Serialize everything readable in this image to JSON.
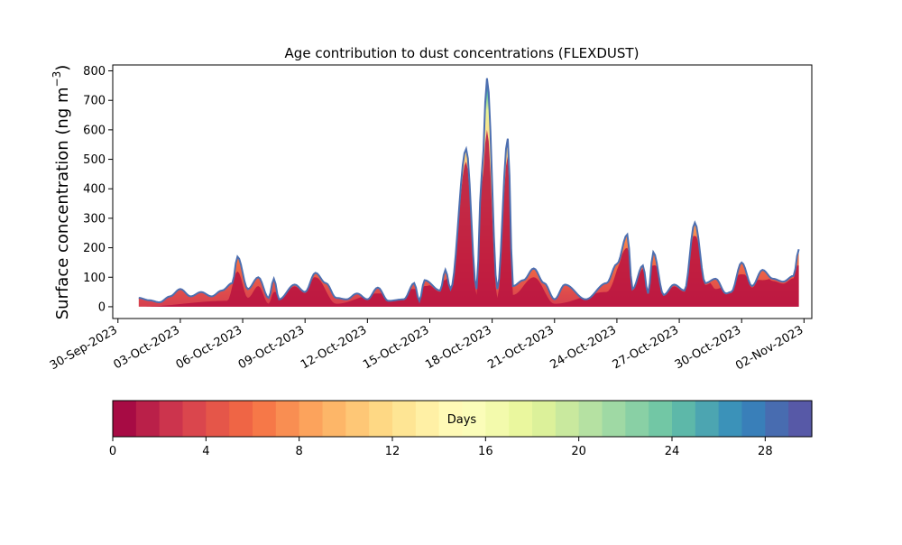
{
  "chart_data": [
    {
      "type": "area",
      "stacked": true,
      "title": "Age contribution to dust concentrations (FLEXDUST)",
      "ylabel_main": "Surface concentration (ng m",
      "ylabel_sup": "−3",
      "ylabel_close": ")",
      "xlabel": "",
      "ylim": [
        -40,
        820
      ],
      "yticks": [
        0,
        100,
        200,
        300,
        400,
        500,
        600,
        700,
        800
      ],
      "xticks": [
        "30-Sep-2023",
        "03-Oct-2023",
        "06-Oct-2023",
        "09-Oct-2023",
        "12-Oct-2023",
        "15-Oct-2023",
        "18-Oct-2023",
        "21-Oct-2023",
        "24-Oct-2023",
        "27-Oct-2023",
        "30-Oct-2023",
        "02-Nov-2023"
      ],
      "x_start": "2023-10-01T00:00",
      "x_end": "2023-11-01T18:00",
      "x_step_hours": 6,
      "total": [
        {
          "x": "2023-10-01T00:00",
          "y": 30
        },
        {
          "x": "2023-10-01T12:00",
          "y": 22
        },
        {
          "x": "2023-10-02T00:00",
          "y": 15
        },
        {
          "x": "2023-10-02T12:00",
          "y": 35
        },
        {
          "x": "2023-10-03T00:00",
          "y": 60
        },
        {
          "x": "2023-10-03T12:00",
          "y": 35
        },
        {
          "x": "2023-10-04T00:00",
          "y": 50
        },
        {
          "x": "2023-10-04T12:00",
          "y": 35
        },
        {
          "x": "2023-10-05T00:00",
          "y": 55
        },
        {
          "x": "2023-10-05T12:00",
          "y": 80
        },
        {
          "x": "2023-10-05T18:00",
          "y": 170
        },
        {
          "x": "2023-10-06T06:00",
          "y": 60
        },
        {
          "x": "2023-10-06T18:00",
          "y": 100
        },
        {
          "x": "2023-10-07T06:00",
          "y": 30
        },
        {
          "x": "2023-10-07T12:00",
          "y": 95
        },
        {
          "x": "2023-10-07T18:00",
          "y": 25
        },
        {
          "x": "2023-10-08T12:00",
          "y": 75
        },
        {
          "x": "2023-10-09T00:00",
          "y": 50
        },
        {
          "x": "2023-10-09T12:00",
          "y": 115
        },
        {
          "x": "2023-10-10T00:00",
          "y": 80
        },
        {
          "x": "2023-10-10T12:00",
          "y": 30
        },
        {
          "x": "2023-10-11T00:00",
          "y": 25
        },
        {
          "x": "2023-10-11T12:00",
          "y": 45
        },
        {
          "x": "2023-10-12T00:00",
          "y": 25
        },
        {
          "x": "2023-10-12T12:00",
          "y": 65
        },
        {
          "x": "2023-10-13T00:00",
          "y": 20
        },
        {
          "x": "2023-10-13T18:00",
          "y": 25
        },
        {
          "x": "2023-10-14T06:00",
          "y": 80
        },
        {
          "x": "2023-10-14T12:00",
          "y": 20
        },
        {
          "x": "2023-10-14T18:00",
          "y": 90
        },
        {
          "x": "2023-10-15T12:00",
          "y": 55
        },
        {
          "x": "2023-10-15T18:00",
          "y": 125
        },
        {
          "x": "2023-10-16T00:00",
          "y": 60
        },
        {
          "x": "2023-10-16T18:00",
          "y": 535
        },
        {
          "x": "2023-10-17T06:00",
          "y": 60
        },
        {
          "x": "2023-10-17T12:00",
          "y": 450
        },
        {
          "x": "2023-10-17T18:00",
          "y": 775
        },
        {
          "x": "2023-10-18T06:00",
          "y": 60
        },
        {
          "x": "2023-10-18T18:00",
          "y": 570
        },
        {
          "x": "2023-10-19T00:00",
          "y": 70
        },
        {
          "x": "2023-10-19T12:00",
          "y": 90
        },
        {
          "x": "2023-10-20T00:00",
          "y": 130
        },
        {
          "x": "2023-10-20T12:00",
          "y": 80
        },
        {
          "x": "2023-10-21T00:00",
          "y": 25
        },
        {
          "x": "2023-10-21T12:00",
          "y": 75
        },
        {
          "x": "2023-10-22T12:00",
          "y": 25
        },
        {
          "x": "2023-10-23T12:00",
          "y": 80
        },
        {
          "x": "2023-10-24T00:00",
          "y": 145
        },
        {
          "x": "2023-10-24T12:00",
          "y": 245
        },
        {
          "x": "2023-10-24T18:00",
          "y": 60
        },
        {
          "x": "2023-10-25T06:00",
          "y": 140
        },
        {
          "x": "2023-10-25T12:00",
          "y": 45
        },
        {
          "x": "2023-10-25T18:00",
          "y": 185
        },
        {
          "x": "2023-10-26T06:00",
          "y": 40
        },
        {
          "x": "2023-10-26T18:00",
          "y": 75
        },
        {
          "x": "2023-10-27T06:00",
          "y": 55
        },
        {
          "x": "2023-10-27T18:00",
          "y": 285
        },
        {
          "x": "2023-10-28T06:00",
          "y": 80
        },
        {
          "x": "2023-10-28T18:00",
          "y": 95
        },
        {
          "x": "2023-10-29T06:00",
          "y": 45
        },
        {
          "x": "2023-10-29T12:00",
          "y": 50
        },
        {
          "x": "2023-10-30T00:00",
          "y": 150
        },
        {
          "x": "2023-10-30T12:00",
          "y": 70
        },
        {
          "x": "2023-10-31T00:00",
          "y": 125
        },
        {
          "x": "2023-10-31T12:00",
          "y": 95
        },
        {
          "x": "2023-11-01T00:00",
          "y": 85
        },
        {
          "x": "2023-11-01T12:00",
          "y": 105
        },
        {
          "x": "2023-11-01T18:00",
          "y": 195
        }
      ],
      "young": [
        {
          "x": "2023-10-01T00:00",
          "y": 0
        },
        {
          "x": "2023-10-05T06:00",
          "y": 20
        },
        {
          "x": "2023-10-05T18:00",
          "y": 120
        },
        {
          "x": "2023-10-06T06:00",
          "y": 30
        },
        {
          "x": "2023-10-06T18:00",
          "y": 70
        },
        {
          "x": "2023-10-07T06:00",
          "y": 10
        },
        {
          "x": "2023-10-07T12:00",
          "y": 50
        },
        {
          "x": "2023-10-09T12:00",
          "y": 100
        },
        {
          "x": "2023-10-10T12:00",
          "y": 10
        },
        {
          "x": "2023-10-12T12:00",
          "y": 45
        },
        {
          "x": "2023-10-14T06:00",
          "y": 60
        },
        {
          "x": "2023-10-14T18:00",
          "y": 70
        },
        {
          "x": "2023-10-15T18:00",
          "y": 90
        },
        {
          "x": "2023-10-16T18:00",
          "y": 500
        },
        {
          "x": "2023-10-17T06:00",
          "y": 40
        },
        {
          "x": "2023-10-17T12:00",
          "y": 420
        },
        {
          "x": "2023-10-17T18:00",
          "y": 600
        },
        {
          "x": "2023-10-18T06:00",
          "y": 30
        },
        {
          "x": "2023-10-18T18:00",
          "y": 510
        },
        {
          "x": "2023-10-19T00:00",
          "y": 40
        },
        {
          "x": "2023-10-20T00:00",
          "y": 100
        },
        {
          "x": "2023-10-21T00:00",
          "y": 10
        },
        {
          "x": "2023-10-23T12:00",
          "y": 50
        },
        {
          "x": "2023-10-24T12:00",
          "y": 200
        },
        {
          "x": "2023-10-25T18:00",
          "y": 140
        },
        {
          "x": "2023-10-27T18:00",
          "y": 240
        },
        {
          "x": "2023-10-28T18:00",
          "y": 60
        },
        {
          "x": "2023-10-30T00:00",
          "y": 110
        },
        {
          "x": "2023-10-31T00:00",
          "y": 90
        },
        {
          "x": "2023-11-01T18:00",
          "y": 140
        }
      ],
      "colorbar": {
        "label": "Days",
        "range": [
          0,
          30
        ],
        "bins": 30,
        "ticks": [
          0,
          4,
          8,
          12,
          16,
          20,
          24,
          28
        ],
        "colormap": "Spectral"
      },
      "colors": {
        "outline": "#4d6fb0",
        "young": "#b8123f",
        "mid": "#f46d43",
        "old": "#fed383"
      }
    }
  ]
}
